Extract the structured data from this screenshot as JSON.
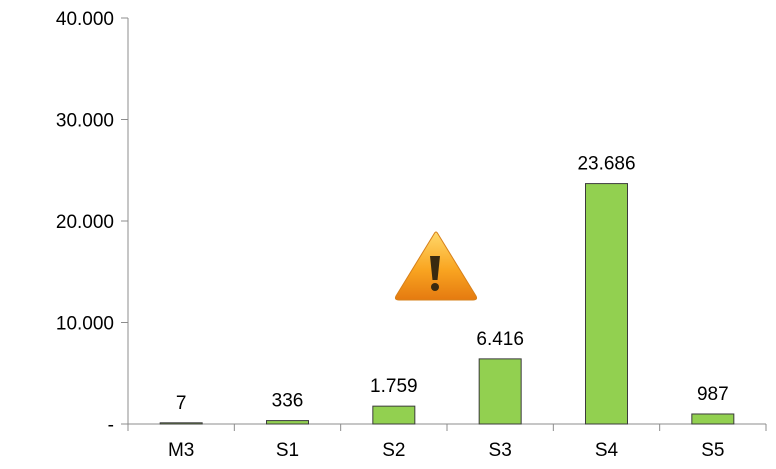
{
  "chart_data": {
    "type": "bar",
    "categories": [
      "M3",
      "S1",
      "S2",
      "S3",
      "S4",
      "S5"
    ],
    "values": [
      7,
      336,
      1759,
      6416,
      23686,
      987
    ],
    "value_labels": [
      "7",
      "336",
      "1.759",
      "6.416",
      "23.686",
      "987"
    ],
    "y_ticks": [
      0,
      10000,
      20000,
      30000,
      40000
    ],
    "y_tick_labels": [
      "-",
      "10.000",
      "20.000",
      "30.000",
      "40.000"
    ],
    "ylim": [
      0,
      40000
    ],
    "title": "",
    "xlabel": "",
    "ylabel": "",
    "grid": false,
    "legend": "none",
    "colors": {
      "bar_fill": "#92d050",
      "bar_stroke": "#3b3b3b",
      "axis": "#8c8c8c"
    },
    "annotation_icon": "warning-triangle-icon"
  }
}
